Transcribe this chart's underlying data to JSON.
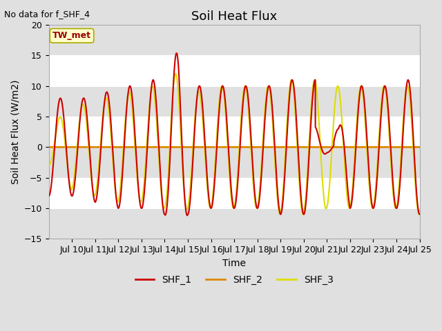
{
  "title": "Soil Heat Flux",
  "top_left_text": "No data for f_SHF_4",
  "ylabel": "Soil Heat Flux (W/m2)",
  "xlabel": "Time",
  "ylim": [
    -15,
    20
  ],
  "xlim_days": [
    9.0,
    25.0
  ],
  "yticks": [
    -15,
    -10,
    -5,
    0,
    5,
    10,
    15,
    20
  ],
  "xtick_labels": [
    "Jul 10",
    "Jul 11",
    "Jul 12",
    "Jul 13",
    "Jul 14",
    "Jul 15",
    "Jul 16",
    "Jul 17",
    "Jul 18",
    "Jul 19",
    "Jul 20",
    "Jul 21",
    "Jul 22",
    "Jul 23",
    "Jul 24",
    "Jul 25"
  ],
  "shf1_color": "#cc0000",
  "shf2_color": "#dd8800",
  "shf3_color": "#dddd00",
  "legend_label": "TW_met",
  "legend_box_facecolor": "#ffffcc",
  "legend_box_edgecolor": "#aaaa00",
  "bg_color": "#e0e0e0",
  "plot_bg_color": "#ffffff",
  "band_color": "#e0e0e0",
  "legend_entries": [
    "SHF_1",
    "SHF_2",
    "SHF_3"
  ],
  "title_fontsize": 13,
  "label_fontsize": 10,
  "tick_fontsize": 9,
  "line_width": 1.5
}
